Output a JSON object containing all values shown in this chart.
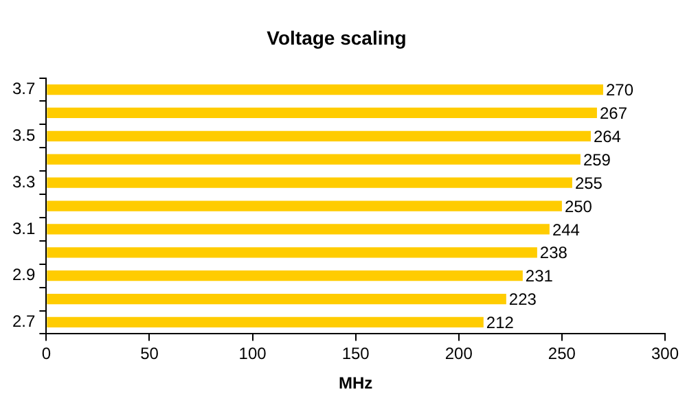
{
  "chart_data": {
    "type": "bar",
    "orientation": "horizontal",
    "title": "Voltage scaling",
    "xlabel": "MHz",
    "categories": [
      "3.7",
      null,
      "3.5",
      null,
      "3.3",
      null,
      "3.1",
      null,
      "2.9",
      null,
      "2.7"
    ],
    "values": [
      270,
      267,
      264,
      259,
      255,
      250,
      244,
      238,
      231,
      223,
      212
    ],
    "color": "#ffcc00",
    "xlim": [
      0,
      300
    ],
    "xticks": [
      0,
      50,
      100,
      150,
      200,
      250,
      300
    ],
    "grid": false,
    "data_labels": true
  }
}
